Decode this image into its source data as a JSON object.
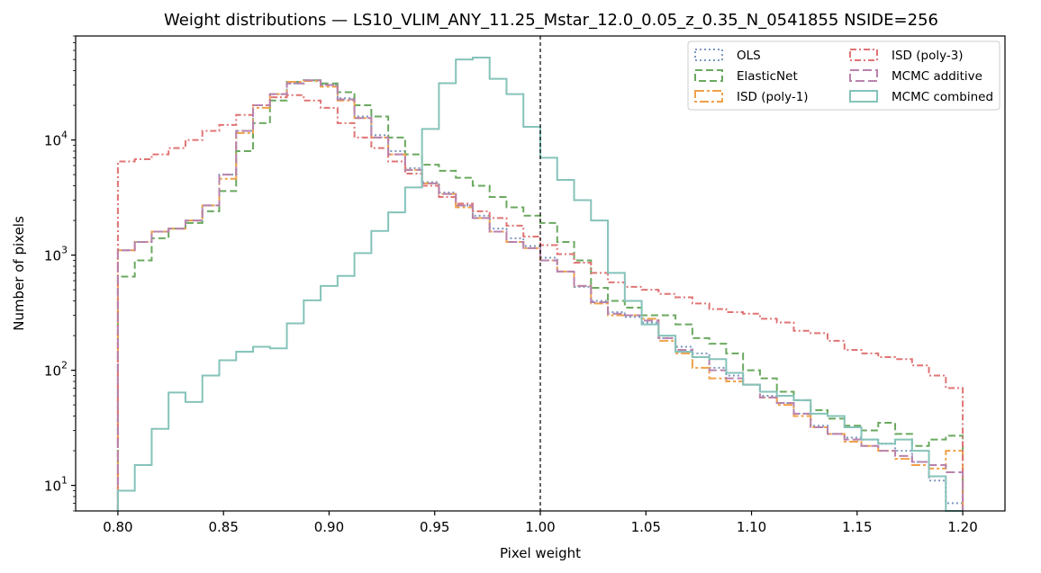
{
  "chart_data": {
    "type": "step-histogram",
    "title": "Weight distributions — LS10_VLIM_ANY_11.25_Mstar_12.0_0.05_z_0.35_N_0541855  NSIDE=256",
    "xlabel": "Pixel weight",
    "ylabel": "Number of pixels",
    "xlim": [
      0.78,
      1.22
    ],
    "ylim": [
      6,
      80000
    ],
    "yscale": "log",
    "xticks": [
      "0.80",
      "0.85",
      "0.90",
      "0.95",
      "1.00",
      "1.05",
      "1.10",
      "1.15",
      "1.20"
    ],
    "yticks": [
      {
        "base": "10",
        "exp": "1",
        "value": 10
      },
      {
        "base": "10",
        "exp": "2",
        "value": 100
      },
      {
        "base": "10",
        "exp": "3",
        "value": 1000
      },
      {
        "base": "10",
        "exp": "4",
        "value": 10000
      }
    ],
    "reference_line": {
      "x": 1.0,
      "style": "dashed",
      "color": "#000000"
    },
    "legend_position": "top-right",
    "bin_edges_range": [
      0.8,
      1.2
    ],
    "n_bins": 50,
    "series": [
      {
        "name": "OLS",
        "color": "#7b97c0",
        "dash": "2 3",
        "width": 2,
        "values": [
          1100,
          1300,
          1600,
          1700,
          2000,
          2700,
          5000,
          12000,
          20000,
          25000,
          31000,
          33000,
          30000,
          23000,
          16000,
          11000,
          8000,
          5700,
          4300,
          3500,
          2700,
          2200,
          1700,
          1400,
          1200,
          950,
          720,
          530,
          400,
          320,
          290,
          260,
          190,
          160,
          140,
          105,
          90,
          75,
          60,
          52,
          42,
          33,
          28,
          26,
          25,
          23,
          20,
          16,
          11,
          7
        ]
      },
      {
        "name": "ElasticNet",
        "color": "#6aa95f",
        "dash": "8 4",
        "width": 2,
        "values": [
          650,
          900,
          1400,
          1700,
          1900,
          2400,
          3600,
          8000,
          14000,
          22000,
          32000,
          33000,
          31000,
          26000,
          20000,
          16000,
          10500,
          7500,
          6100,
          5400,
          4700,
          4000,
          3200,
          2600,
          2200,
          1900,
          1300,
          900,
          520,
          400,
          350,
          300,
          300,
          250,
          190,
          170,
          140,
          100,
          85,
          65,
          55,
          45,
          38,
          33,
          30,
          35,
          28,
          22,
          25,
          27
        ]
      },
      {
        "name": "ISD (poly-1)",
        "color": "#f0a14a",
        "dash": "10 3 3 3",
        "width": 2,
        "values": [
          1100,
          1300,
          1600,
          1700,
          2000,
          2700,
          4600,
          11500,
          19000,
          25000,
          32000,
          32500,
          29000,
          22000,
          15500,
          10500,
          7500,
          5500,
          4200,
          3400,
          2600,
          2100,
          1600,
          1300,
          1150,
          900,
          720,
          540,
          380,
          300,
          300,
          280,
          180,
          140,
          105,
          85,
          80,
          75,
          58,
          50,
          40,
          32,
          28,
          24,
          22,
          20,
          17,
          15,
          14,
          20
        ]
      },
      {
        "name": "ISD (poly-3)",
        "color": "#e07474",
        "dash": "7 3 2 3",
        "width": 2,
        "values": [
          6500,
          6800,
          7500,
          8500,
          10000,
          12000,
          13500,
          16500,
          20000,
          23500,
          24500,
          22000,
          19000,
          14000,
          10500,
          8500,
          6500,
          5100,
          4000,
          3200,
          2800,
          2400,
          2100,
          1800,
          1450,
          1220,
          1020,
          860,
          700,
          580,
          530,
          500,
          460,
          430,
          380,
          340,
          320,
          310,
          280,
          260,
          220,
          210,
          180,
          150,
          140,
          130,
          125,
          110,
          90,
          70
        ]
      },
      {
        "name": "MCMC additive",
        "color": "#b882ad",
        "dash": "10 4",
        "width": 2,
        "values": [
          1100,
          1300,
          1600,
          1700,
          2000,
          2700,
          5000,
          12000,
          20000,
          25000,
          31000,
          33000,
          30000,
          22500,
          15500,
          10500,
          7500,
          5500,
          4200,
          3400,
          2700,
          2100,
          1600,
          1300,
          1150,
          900,
          720,
          540,
          390,
          310,
          300,
          270,
          190,
          150,
          130,
          100,
          85,
          75,
          58,
          52,
          42,
          32,
          28,
          25,
          22,
          20,
          18,
          16,
          15,
          13
        ]
      },
      {
        "name": "MCMC combined",
        "color": "#85c3ba",
        "dash": "",
        "width": 2,
        "values": [
          9,
          15,
          31,
          64,
          53,
          90,
          122,
          145,
          160,
          155,
          255,
          405,
          540,
          660,
          1040,
          1620,
          2350,
          3870,
          12450,
          31100,
          50000,
          52000,
          34000,
          25000,
          13000,
          7000,
          4500,
          3000,
          2000,
          700,
          400,
          250,
          200,
          145,
          130,
          125,
          95,
          75,
          65,
          60,
          55,
          42,
          40,
          32,
          25,
          23,
          25,
          20,
          12,
          5
        ]
      }
    ]
  }
}
